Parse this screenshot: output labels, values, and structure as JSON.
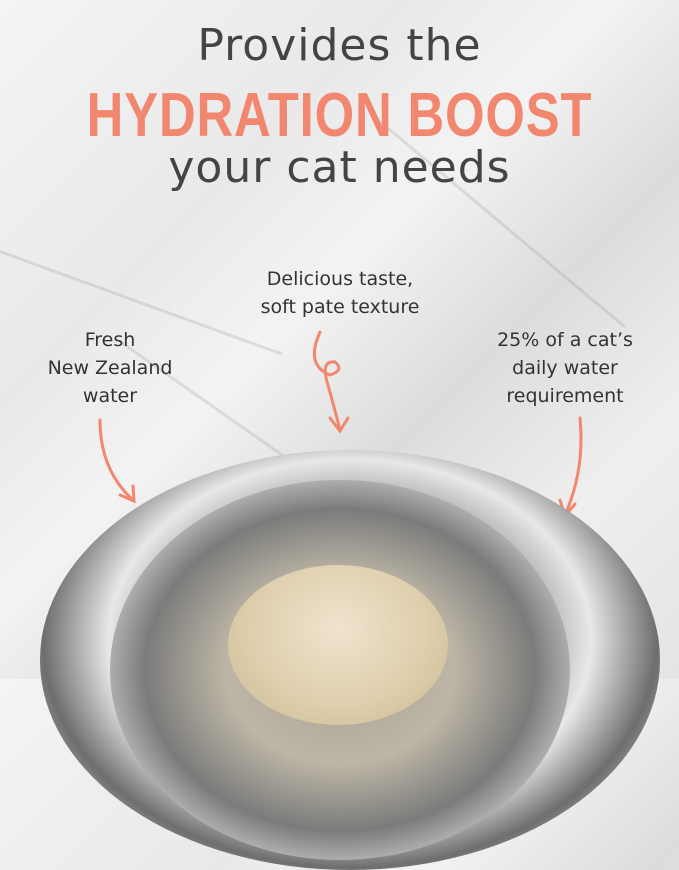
{
  "headline": {
    "line1": "Provides the",
    "highlight": "HYDRATION BOOST",
    "line3": "your cat needs"
  },
  "callouts": [
    {
      "text_lines": [
        "Fresh",
        "New Zealand",
        "water"
      ]
    },
    {
      "text_lines": [
        "Delicious taste,",
        "soft pate texture"
      ]
    },
    {
      "text_lines": [
        "25% of a cat’s",
        "daily water",
        "requirement"
      ]
    }
  ],
  "colors": {
    "accent": "#f2876f",
    "text": "#444444"
  }
}
